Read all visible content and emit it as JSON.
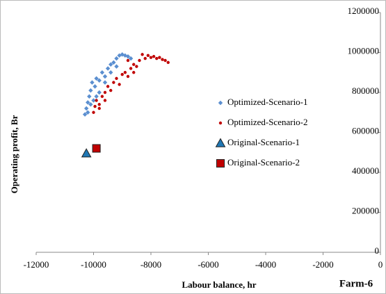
{
  "chart_data": {
    "type": "scatter",
    "xlabel": "Labour balance, hr",
    "ylabel": "Operating profit,  Br",
    "annotation": "Farm-6",
    "xlim": [
      -12000,
      0
    ],
    "xticks": [
      -12000,
      -10000,
      -8000,
      -6000,
      -4000,
      -2000,
      0
    ],
    "ylim": [
      0,
      1200000
    ],
    "yticks": [
      0,
      200000,
      400000,
      600000,
      800000,
      1000000,
      1200000
    ],
    "grid": false,
    "legend": "right",
    "series": [
      {
        "name": "Optimized-Scenario-1",
        "color": "#5b8fd0",
        "marker": "diamond",
        "x": [
          -10300,
          -10250,
          -10200,
          -10150,
          -10100,
          -10050,
          -9950,
          -9900,
          -9800,
          -9700,
          -9600,
          -9500,
          -9400,
          -9300,
          -9200,
          -9100,
          -9000,
          -8900,
          -8800,
          -8700,
          -9600,
          -9800,
          -10000,
          -10200,
          -9400,
          -9200,
          -10100,
          -9900
        ],
        "y": [
          690000,
          720000,
          750000,
          780000,
          810000,
          850000,
          830000,
          870000,
          860000,
          900000,
          880000,
          920000,
          940000,
          950000,
          970000,
          985000,
          990000,
          985000,
          980000,
          970000,
          850000,
          800000,
          760000,
          700000,
          900000,
          930000,
          740000,
          780000
        ]
      },
      {
        "name": "Optimized-Scenario-2",
        "color": "#c00000",
        "marker": "circle",
        "x": [
          -10000,
          -9950,
          -9900,
          -9800,
          -9700,
          -9600,
          -9500,
          -9400,
          -9300,
          -9200,
          -9100,
          -9000,
          -8900,
          -8800,
          -8700,
          -8600,
          -8500,
          -8400,
          -8300,
          -8200,
          -8100,
          -8000,
          -7900,
          -7800,
          -7700,
          -7600,
          -7500,
          -7400,
          -8800,
          -9600,
          -9800,
          -8600
        ],
        "y": [
          700000,
          730000,
          760000,
          740000,
          780000,
          800000,
          830000,
          810000,
          850000,
          870000,
          840000,
          890000,
          900000,
          880000,
          920000,
          940000,
          930000,
          960000,
          990000,
          970000,
          985000,
          975000,
          980000,
          970000,
          975000,
          965000,
          960000,
          950000,
          960000,
          760000,
          720000,
          900000
        ]
      },
      {
        "name": "Original-Scenario-1",
        "color": "#1f77b4",
        "marker": "triangle",
        "x": [
          -10250
        ],
        "y": [
          495000
        ]
      },
      {
        "name": "Original-Scenario-2",
        "color": "#c00000",
        "marker": "square",
        "x": [
          -9900
        ],
        "y": [
          520000
        ]
      }
    ]
  }
}
